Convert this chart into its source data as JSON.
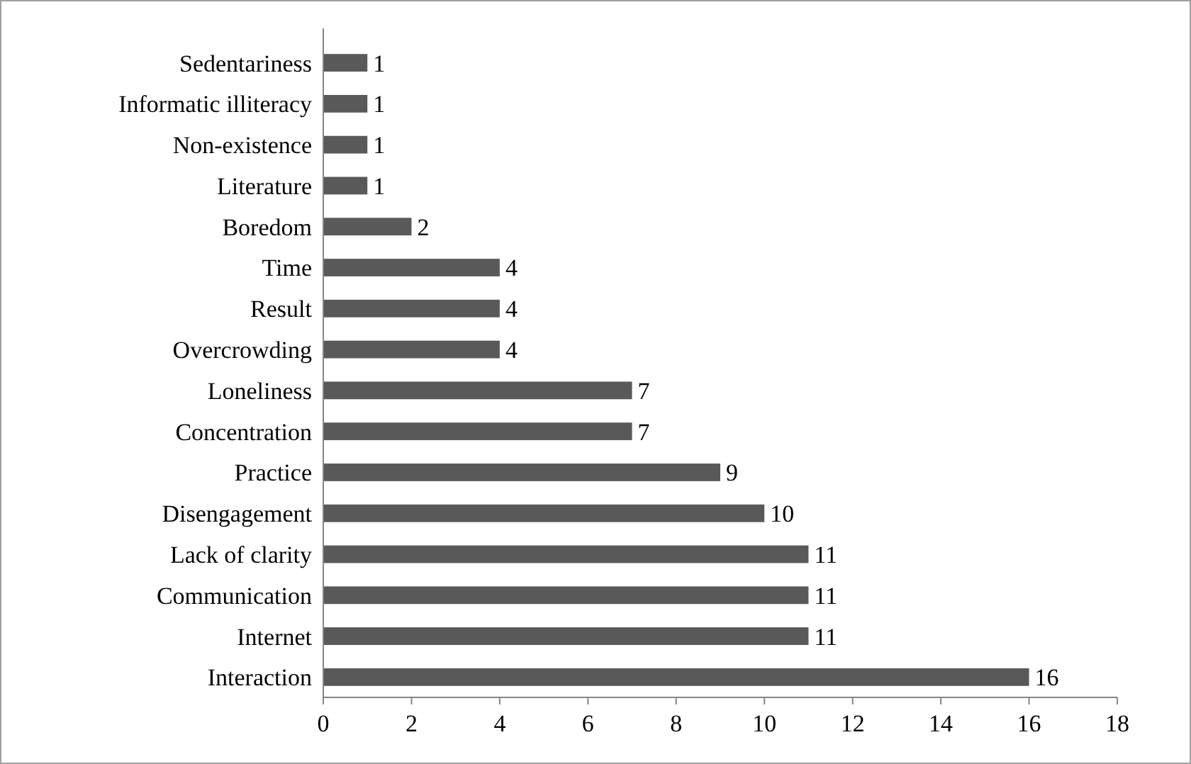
{
  "chart_data": {
    "type": "bar",
    "orientation": "horizontal",
    "categories": [
      "Sedentariness",
      "Informatic illiteracy",
      "Non-existence",
      "Literature",
      "Boredom",
      "Time",
      "Result",
      "Overcrowding",
      "Loneliness",
      "Concentration",
      "Practice",
      "Disengagement",
      "Lack of clarity",
      "Communication",
      "Internet",
      "Interaction"
    ],
    "values": [
      1,
      1,
      1,
      1,
      2,
      4,
      4,
      4,
      7,
      7,
      9,
      10,
      11,
      11,
      11,
      16
    ],
    "color": "#595959",
    "xlim": [
      0,
      18
    ],
    "xticks": [
      0,
      2,
      4,
      6,
      8,
      10,
      12,
      14,
      16,
      18
    ],
    "data_labels": true
  }
}
